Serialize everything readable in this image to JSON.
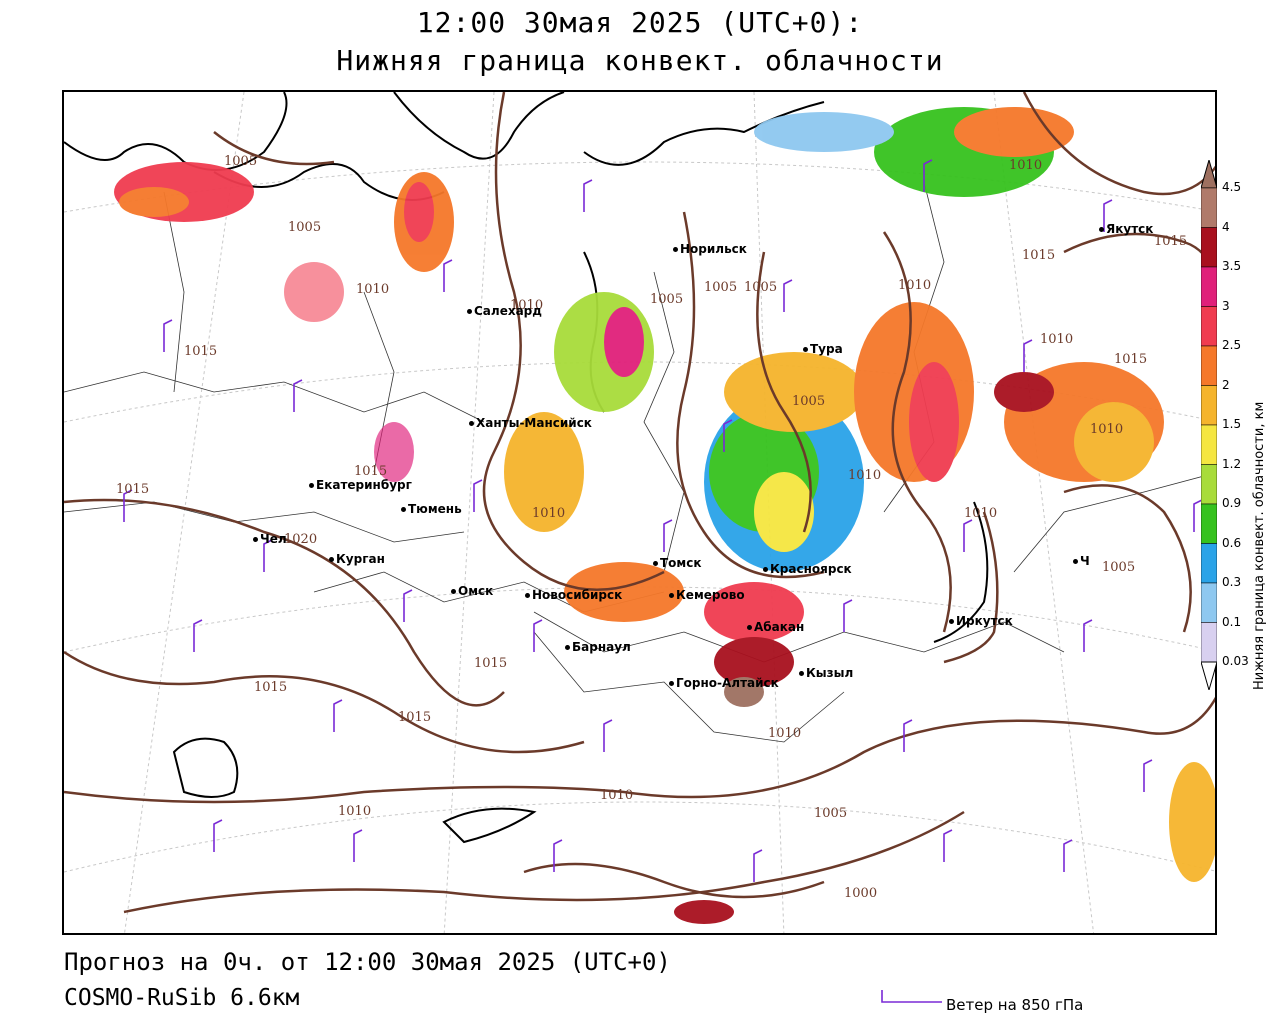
{
  "title": {
    "line1": "12:00 30мая 2025 (UTC+0):",
    "line2": "Нижняя граница конвект. облачности"
  },
  "footer": {
    "forecast": "Прогноз на 0ч. от 12:00 30мая 2025 (UTC+0)",
    "model": "COSMO-RuSib 6.6км",
    "wind_legend": "Ветер на 850 гПа"
  },
  "colorbar": {
    "title": "Нижняя граница конвект. облачности, км",
    "levels": [
      {
        "label": "4.5",
        "color": "#9e7060"
      },
      {
        "label": "4",
        "color": "#b07a6a"
      },
      {
        "label": "3.5",
        "color": "#a8101e"
      },
      {
        "label": "3",
        "color": "#e0207a"
      },
      {
        "label": "2.5",
        "color": "#f03c50"
      },
      {
        "label": "2",
        "color": "#f5782a"
      },
      {
        "label": "1.5",
        "color": "#f5b42c"
      },
      {
        "label": "1.2",
        "color": "#f5e640"
      },
      {
        "label": "0.9",
        "color": "#a8dc3a"
      },
      {
        "label": "0.6",
        "color": "#36c21e"
      },
      {
        "label": "0.3",
        "color": "#2aa3e8"
      },
      {
        "label": "0.1",
        "color": "#8ec8f0"
      },
      {
        "label": "0.03",
        "color": "#d8d0f0"
      }
    ]
  },
  "cities": [
    {
      "name": "Якутск"
    },
    {
      "name": "Норильск"
    },
    {
      "name": "Салехард"
    },
    {
      "name": "Тура"
    },
    {
      "name": "Ханты-Мансийск"
    },
    {
      "name": "Екатеринбург"
    },
    {
      "name": "Тюмень"
    },
    {
      "name": "Чел"
    },
    {
      "name": "Курган"
    },
    {
      "name": "Омск"
    },
    {
      "name": "Новосибирск"
    },
    {
      "name": "Томск"
    },
    {
      "name": "Кемерово"
    },
    {
      "name": "Красноярск"
    },
    {
      "name": "Абакан"
    },
    {
      "name": "Барнаул"
    },
    {
      "name": "Горно-Алтайск"
    },
    {
      "name": "Кызыл"
    },
    {
      "name": "Иркутск"
    },
    {
      "name": "Ч"
    }
  ],
  "isobars": [
    "1005",
    "1010",
    "1005",
    "1015",
    "1010",
    "1015",
    "1015",
    "1015",
    "1020",
    "1010",
    "1010",
    "1015",
    "1015",
    "1015",
    "1005",
    "1005",
    "1005",
    "1005",
    "1010",
    "1010",
    "1010",
    "1015",
    "1010",
    "1010",
    "1015",
    "1010",
    "1010",
    "1005",
    "1000",
    "1010",
    "1005"
  ]
}
